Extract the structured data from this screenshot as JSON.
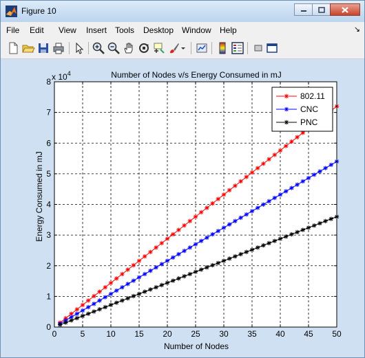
{
  "window": {
    "title": "Figure 10",
    "controls": [
      "minimize",
      "maximize",
      "close"
    ]
  },
  "menu": {
    "items": [
      "File",
      "Edit",
      "View",
      "Insert",
      "Tools",
      "Desktop",
      "Window",
      "Help"
    ]
  },
  "toolbar": {
    "icons": [
      "new-figure-icon",
      "open-file-icon",
      "save-icon",
      "print-icon",
      "pointer-icon",
      "zoom-in-icon",
      "zoom-out-icon",
      "pan-icon",
      "rotate-3d-icon",
      "data-cursor-icon",
      "brush-icon",
      "brush-dropdown-icon",
      "link-plot-icon",
      "colorbar-icon",
      "legend-icon",
      "hide-plot-tools-icon",
      "show-plot-tools-icon"
    ]
  },
  "chart_data": {
    "type": "line",
    "title": "Number of Nodes v/s Energy Consumed in mJ",
    "xlabel": "Number of Nodes",
    "ylabel": "Energy Consumed in mJ",
    "y_multiplier": "x 10",
    "y_multiplier_exp": "4",
    "xlim": [
      0,
      50
    ],
    "ylim": [
      0,
      8
    ],
    "xticks": [
      "0",
      "5",
      "10",
      "15",
      "20",
      "25",
      "30",
      "35",
      "40",
      "45",
      "50"
    ],
    "yticks": [
      "0",
      "1",
      "2",
      "3",
      "4",
      "5",
      "6",
      "7",
      "8"
    ],
    "grid": true,
    "legend_position": "top-right",
    "x": [
      1,
      50
    ],
    "series": [
      {
        "name": "802.11",
        "color": "#ff0000",
        "y_at_1": 0.145,
        "y_at_50": 7.2,
        "marker": "*"
      },
      {
        "name": "CNC",
        "color": "#0000ff",
        "y_at_1": 0.11,
        "y_at_50": 5.4,
        "marker": "*"
      },
      {
        "name": "PNC",
        "color": "#000000",
        "y_at_1": 0.075,
        "y_at_50": 3.6,
        "marker": "*"
      }
    ]
  }
}
